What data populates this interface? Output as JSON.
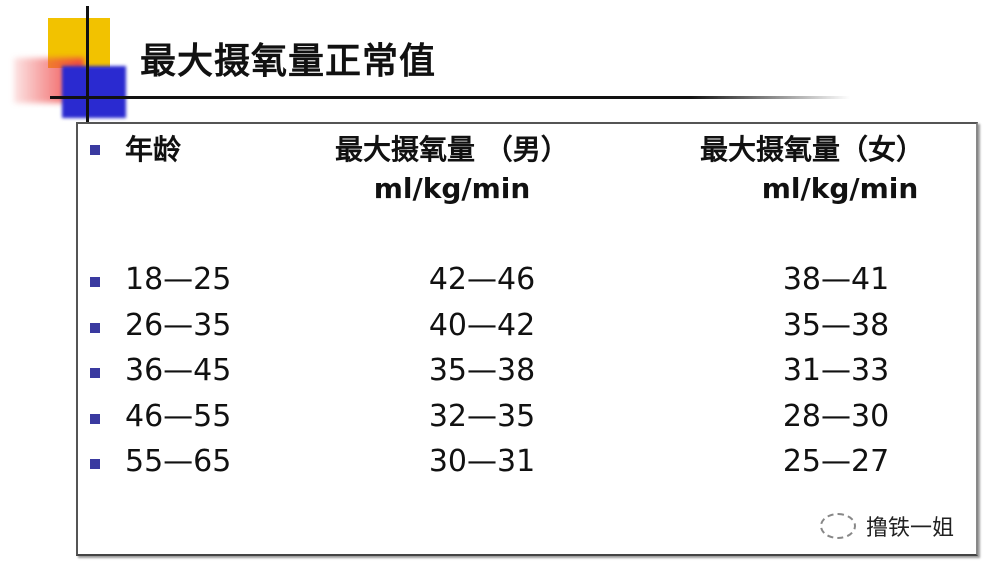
{
  "title": "最大摄氧量正常值",
  "headers": {
    "age": "年龄",
    "male": "最大摄氧量 （男）",
    "female": "最大摄氧量（女）",
    "unit": "ml/kg/min"
  },
  "rows": [
    {
      "age": "18—25",
      "male": "42—46",
      "female": "38—41"
    },
    {
      "age": "26—35",
      "male": "40—42",
      "female": "35—38"
    },
    {
      "age": "36—45",
      "male": "35—38",
      "female": "31—33"
    },
    {
      "age": "46—55",
      "male": "32—35",
      "female": "28—30"
    },
    {
      "age": "55—65",
      "male": "30—31",
      "female": "25—27"
    }
  ],
  "watermark": {
    "icon": "wechat-icon",
    "text": "撸铁一姐"
  },
  "colors": {
    "bullet": "#3a3aa0",
    "yellow": "#f2c200",
    "blue": "#2a2ad0",
    "red": "#e44444"
  }
}
